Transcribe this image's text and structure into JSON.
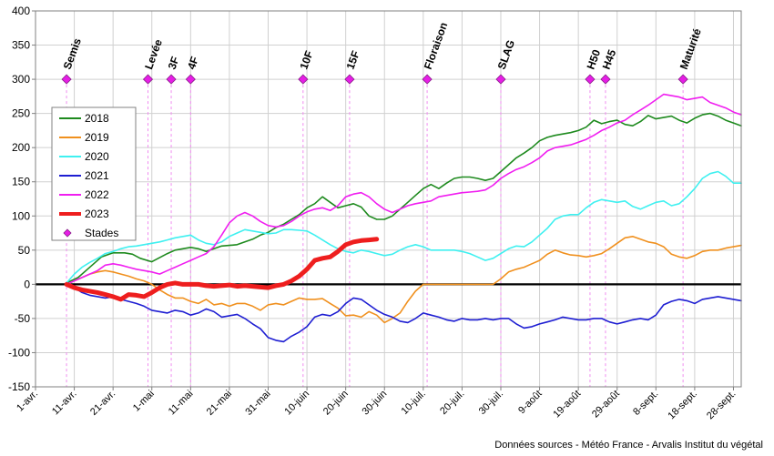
{
  "chart_data": {
    "type": "line",
    "title": "",
    "xlabel": "",
    "ylabel": "",
    "ylim": [
      -150,
      400
    ],
    "yticks": [
      -150,
      -100,
      -50,
      0,
      50,
      100,
      150,
      200,
      250,
      300,
      350,
      400
    ],
    "grid": true,
    "x_unit": "day of year (1-avr. = 0)",
    "xlim": [
      0,
      182
    ],
    "x_ticks": [
      {
        "x": 0,
        "label": "1-avr."
      },
      {
        "x": 10,
        "label": "11-avr."
      },
      {
        "x": 20,
        "label": "21-avr."
      },
      {
        "x": 30,
        "label": "1-mai"
      },
      {
        "x": 40,
        "label": "11-mai"
      },
      {
        "x": 50,
        "label": "21-mai"
      },
      {
        "x": 60,
        "label": "31-mai"
      },
      {
        "x": 70,
        "label": "10-juin"
      },
      {
        "x": 80,
        "label": "20-juin"
      },
      {
        "x": 90,
        "label": "30-juin"
      },
      {
        "x": 100,
        "label": "10-juil."
      },
      {
        "x": 110,
        "label": "20-juil."
      },
      {
        "x": 120,
        "label": "30-juil."
      },
      {
        "x": 130,
        "label": "9-août"
      },
      {
        "x": 140,
        "label": "19-août"
      },
      {
        "x": 150,
        "label": "29-août"
      },
      {
        "x": 160,
        "label": "8-sept."
      },
      {
        "x": 170,
        "label": "18-sept."
      },
      {
        "x": 180,
        "label": "28-sept."
      }
    ],
    "legend_position": "left",
    "series": [
      {
        "name": "2018",
        "color": "#1e8a1e",
        "width": 1.6,
        "x": [
          8,
          11,
          13,
          15,
          17,
          20,
          23,
          25,
          27,
          30,
          34,
          36,
          38,
          40,
          42,
          44,
          46,
          48,
          50,
          52,
          54,
          56,
          58,
          60,
          62,
          64,
          66,
          68,
          70,
          72,
          74,
          76,
          78,
          80,
          82,
          84,
          86,
          88,
          90,
          92,
          94,
          96,
          98,
          100,
          102,
          104,
          106,
          108,
          110,
          112,
          114,
          116,
          118,
          120,
          122,
          124,
          126,
          128,
          130,
          132,
          134,
          136,
          138,
          140,
          142,
          144,
          146,
          148,
          150,
          152,
          154,
          156,
          158,
          160,
          162,
          164,
          166,
          168,
          170,
          172,
          174,
          176,
          178,
          180,
          182
        ],
        "y": [
          2,
          10,
          20,
          30,
          40,
          46,
          46,
          44,
          38,
          33,
          45,
          50,
          52,
          54,
          52,
          48,
          52,
          56,
          57,
          58,
          62,
          66,
          72,
          76,
          83,
          88,
          95,
          102,
          112,
          118,
          128,
          120,
          112,
          115,
          118,
          113,
          100,
          95,
          95,
          100,
          110,
          120,
          130,
          140,
          146,
          140,
          148,
          155,
          157,
          157,
          155,
          152,
          155,
          165,
          175,
          185,
          192,
          200,
          210,
          215,
          218,
          220,
          222,
          225,
          230,
          240,
          235,
          238,
          240,
          234,
          232,
          238,
          247,
          242,
          244,
          246,
          240,
          236,
          243,
          248,
          250,
          246,
          240,
          236,
          232
        ]
      },
      {
        "name": "2019",
        "color": "#f0901e",
        "width": 1.6,
        "x": [
          8,
          10,
          12,
          14,
          16,
          18,
          20,
          22,
          24,
          26,
          28,
          30,
          32,
          34,
          36,
          38,
          40,
          42,
          44,
          46,
          48,
          50,
          52,
          54,
          56,
          58,
          60,
          62,
          64,
          66,
          68,
          70,
          72,
          74,
          76,
          78,
          80,
          82,
          84,
          86,
          88,
          90,
          92,
          94,
          96,
          98,
          100,
          102,
          104,
          106,
          108,
          110,
          112,
          114,
          116,
          118,
          120,
          122,
          124,
          126,
          128,
          130,
          132,
          134,
          136,
          138,
          140,
          142,
          144,
          146,
          148,
          150,
          152,
          154,
          156,
          158,
          160,
          162,
          164,
          166,
          168,
          170,
          172,
          174,
          176,
          178,
          180,
          182
        ],
        "y": [
          0,
          5,
          10,
          15,
          18,
          20,
          18,
          15,
          12,
          8,
          5,
          0,
          -8,
          -15,
          -20,
          -20,
          -25,
          -28,
          -22,
          -30,
          -28,
          -32,
          -28,
          -28,
          -32,
          -38,
          -30,
          -28,
          -30,
          -25,
          -20,
          -22,
          -22,
          -21,
          -28,
          -35,
          -46,
          -45,
          -48,
          -40,
          -45,
          -56,
          -50,
          -42,
          -25,
          -10,
          0,
          0,
          0,
          0,
          0,
          0,
          0,
          0,
          0,
          0,
          8,
          18,
          22,
          25,
          30,
          35,
          44,
          50,
          46,
          43,
          42,
          40,
          42,
          45,
          52,
          60,
          68,
          70,
          66,
          62,
          60,
          55,
          44,
          40,
          38,
          42,
          48,
          50,
          50,
          53,
          55,
          57
        ]
      },
      {
        "name": "2020",
        "color": "#3ff0f0",
        "width": 1.6,
        "x": [
          8,
          10,
          12,
          14,
          16,
          18,
          20,
          22,
          24,
          26,
          28,
          30,
          32,
          34,
          36,
          38,
          40,
          42,
          44,
          46,
          48,
          50,
          52,
          54,
          56,
          58,
          60,
          62,
          64,
          66,
          68,
          70,
          72,
          74,
          76,
          78,
          80,
          82,
          84,
          86,
          88,
          90,
          92,
          94,
          96,
          98,
          100,
          102,
          104,
          106,
          108,
          110,
          112,
          114,
          116,
          118,
          120,
          122,
          124,
          126,
          128,
          130,
          132,
          134,
          136,
          138,
          140,
          142,
          144,
          146,
          148,
          150,
          152,
          154,
          156,
          158,
          160,
          162,
          164,
          166,
          168,
          170,
          172,
          174,
          176,
          178,
          180,
          182
        ],
        "y": [
          2,
          15,
          25,
          32,
          38,
          45,
          48,
          52,
          55,
          56,
          58,
          60,
          62,
          65,
          68,
          70,
          72,
          65,
          60,
          58,
          62,
          70,
          75,
          80,
          78,
          76,
          74,
          75,
          80,
          80,
          79,
          78,
          72,
          65,
          58,
          52,
          48,
          46,
          50,
          48,
          45,
          42,
          44,
          50,
          55,
          58,
          55,
          50,
          50,
          50,
          50,
          48,
          45,
          40,
          35,
          38,
          45,
          52,
          56,
          55,
          62,
          72,
          82,
          95,
          100,
          102,
          102,
          112,
          120,
          124,
          122,
          120,
          122,
          114,
          110,
          115,
          120,
          122,
          115,
          118,
          128,
          140,
          155,
          162,
          165,
          158,
          148,
          148
        ]
      },
      {
        "name": "2021",
        "color": "#1e1ed2",
        "width": 1.6,
        "x": [
          8,
          10,
          12,
          14,
          16,
          18,
          20,
          22,
          24,
          26,
          28,
          30,
          32,
          34,
          36,
          38,
          40,
          42,
          44,
          46,
          48,
          50,
          52,
          54,
          56,
          58,
          60,
          62,
          64,
          66,
          68,
          70,
          72,
          74,
          76,
          78,
          80,
          82,
          84,
          86,
          88,
          90,
          92,
          94,
          96,
          98,
          100,
          102,
          104,
          106,
          108,
          110,
          112,
          114,
          116,
          118,
          120,
          122,
          124,
          126,
          128,
          130,
          132,
          134,
          136,
          138,
          140,
          142,
          144,
          146,
          148,
          150,
          152,
          154,
          156,
          158,
          160,
          162,
          164,
          166,
          168,
          170,
          172,
          174,
          176,
          178,
          180,
          182
        ],
        "y": [
          0,
          -5,
          -12,
          -16,
          -18,
          -20,
          -18,
          -22,
          -25,
          -28,
          -32,
          -38,
          -40,
          -42,
          -38,
          -40,
          -45,
          -42,
          -36,
          -40,
          -48,
          -46,
          -44,
          -50,
          -58,
          -65,
          -78,
          -82,
          -84,
          -76,
          -70,
          -62,
          -48,
          -44,
          -46,
          -40,
          -28,
          -20,
          -22,
          -30,
          -38,
          -44,
          -48,
          -54,
          -56,
          -50,
          -42,
          -45,
          -48,
          -52,
          -54,
          -50,
          -52,
          -52,
          -50,
          -52,
          -50,
          -50,
          -58,
          -64,
          -62,
          -58,
          -55,
          -52,
          -48,
          -50,
          -52,
          -52,
          -50,
          -50,
          -55,
          -58,
          -55,
          -52,
          -50,
          -52,
          -45,
          -30,
          -25,
          -22,
          -24,
          -28,
          -22,
          -20,
          -18,
          -20,
          -22,
          -24
        ]
      },
      {
        "name": "2022",
        "color": "#f01ef0",
        "width": 1.6,
        "x": [
          8,
          10,
          12,
          14,
          16,
          18,
          20,
          22,
          24,
          26,
          28,
          30,
          32,
          34,
          36,
          38,
          40,
          42,
          44,
          46,
          48,
          50,
          52,
          54,
          56,
          58,
          60,
          62,
          64,
          66,
          68,
          70,
          72,
          74,
          76,
          78,
          80,
          82,
          84,
          86,
          88,
          90,
          92,
          94,
          96,
          98,
          100,
          102,
          104,
          106,
          108,
          110,
          112,
          114,
          116,
          118,
          120,
          122,
          124,
          126,
          128,
          130,
          132,
          134,
          136,
          138,
          140,
          142,
          144,
          146,
          148,
          150,
          152,
          154,
          156,
          158,
          160,
          162,
          164,
          166,
          168,
          170,
          172,
          174,
          176,
          178,
          180,
          182
        ],
        "y": [
          0,
          5,
          10,
          15,
          20,
          28,
          30,
          28,
          25,
          22,
          20,
          18,
          15,
          20,
          25,
          30,
          35,
          40,
          45,
          55,
          72,
          90,
          100,
          105,
          100,
          92,
          86,
          84,
          86,
          92,
          100,
          106,
          110,
          112,
          108,
          115,
          128,
          132,
          134,
          128,
          118,
          110,
          105,
          110,
          115,
          118,
          120,
          122,
          128,
          130,
          132,
          134,
          135,
          136,
          138,
          145,
          155,
          162,
          168,
          172,
          178,
          185,
          195,
          200,
          202,
          204,
          208,
          212,
          218,
          225,
          230,
          236,
          240,
          248,
          255,
          262,
          270,
          278,
          276,
          274,
          270,
          272,
          274,
          266,
          262,
          258,
          252,
          248
        ]
      },
      {
        "name": "2023",
        "color": "#ee1e1e",
        "width": 5,
        "x": [
          8,
          10,
          12,
          14,
          16,
          18,
          20,
          22,
          24,
          26,
          28,
          30,
          32,
          34,
          36,
          38,
          40,
          42,
          44,
          46,
          48,
          50,
          52,
          54,
          56,
          58,
          60,
          62,
          64,
          66,
          68,
          70,
          72,
          74,
          76,
          78,
          80,
          82,
          84,
          86,
          88
        ],
        "y": [
          0,
          -5,
          -8,
          -10,
          -12,
          -15,
          -18,
          -22,
          -15,
          -16,
          -18,
          -12,
          -5,
          0,
          2,
          0,
          0,
          0,
          -2,
          -3,
          -2,
          -1,
          -3,
          -2,
          -3,
          -4,
          -5,
          -2,
          0,
          5,
          12,
          22,
          35,
          38,
          40,
          48,
          58,
          62,
          64,
          65,
          66
        ]
      },
      {
        "name": "Stades",
        "color": "#e61ee6",
        "marker": "diamond",
        "points_only": true,
        "x": [],
        "y": []
      }
    ],
    "stages": [
      {
        "label": "Semis",
        "x": 8
      },
      {
        "label": "Levée",
        "x": 29
      },
      {
        "label": "3F",
        "x": 35
      },
      {
        "label": "4F",
        "x": 40
      },
      {
        "label": "10F",
        "x": 69
      },
      {
        "label": "15F",
        "x": 81
      },
      {
        "label": "Floraison",
        "x": 101
      },
      {
        "label": "SLAG",
        "x": 120
      },
      {
        "label": "H50",
        "x": 143
      },
      {
        "label": "H45",
        "x": 147
      },
      {
        "label": "Maturité",
        "x": 167
      }
    ],
    "stage_marker_y": 300,
    "source": "Données sources - Météo France - Arvalis Institut du végétal"
  }
}
